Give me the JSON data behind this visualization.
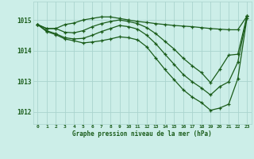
{
  "title": "Graphe pression niveau de la mer (hPa)",
  "bg_color": "#cceee8",
  "grid_color": "#aad4ce",
  "line_color": "#1a5c1a",
  "xlim_min": -0.5,
  "xlim_max": 23.5,
  "ylim_min": 1011.6,
  "ylim_max": 1015.6,
  "yticks": [
    1012,
    1013,
    1014,
    1015
  ],
  "xticks": [
    0,
    1,
    2,
    3,
    4,
    5,
    6,
    7,
    8,
    9,
    10,
    11,
    12,
    13,
    14,
    15,
    16,
    17,
    18,
    19,
    20,
    21,
    22,
    23
  ],
  "series": [
    [
      1014.85,
      1014.72,
      1014.72,
      1014.85,
      1014.9,
      1015.0,
      1015.05,
      1015.1,
      1015.1,
      1015.05,
      1015.0,
      1014.95,
      1014.92,
      1014.88,
      1014.85,
      1014.82,
      1014.8,
      1014.78,
      1014.75,
      1014.72,
      1014.7,
      1014.68,
      1014.68,
      1015.12
    ],
    [
      1014.85,
      1014.72,
      1014.72,
      1014.6,
      1014.58,
      1014.65,
      1014.78,
      1014.88,
      1014.95,
      1015.0,
      1014.95,
      1014.88,
      1014.75,
      1014.55,
      1014.3,
      1014.05,
      1013.75,
      1013.5,
      1013.28,
      1012.95,
      1013.38,
      1013.85,
      1013.88,
      1015.12
    ],
    [
      1014.85,
      1014.65,
      1014.55,
      1014.42,
      1014.38,
      1014.4,
      1014.5,
      1014.62,
      1014.72,
      1014.82,
      1014.78,
      1014.7,
      1014.5,
      1014.22,
      1013.88,
      1013.55,
      1013.22,
      1012.98,
      1012.78,
      1012.55,
      1012.82,
      1012.98,
      1013.62,
      1015.12
    ],
    [
      1014.85,
      1014.62,
      1014.52,
      1014.38,
      1014.32,
      1014.25,
      1014.28,
      1014.32,
      1014.38,
      1014.45,
      1014.42,
      1014.35,
      1014.12,
      1013.75,
      1013.38,
      1013.05,
      1012.72,
      1012.48,
      1012.3,
      1012.05,
      1012.12,
      1012.25,
      1013.08,
      1015.05
    ]
  ]
}
